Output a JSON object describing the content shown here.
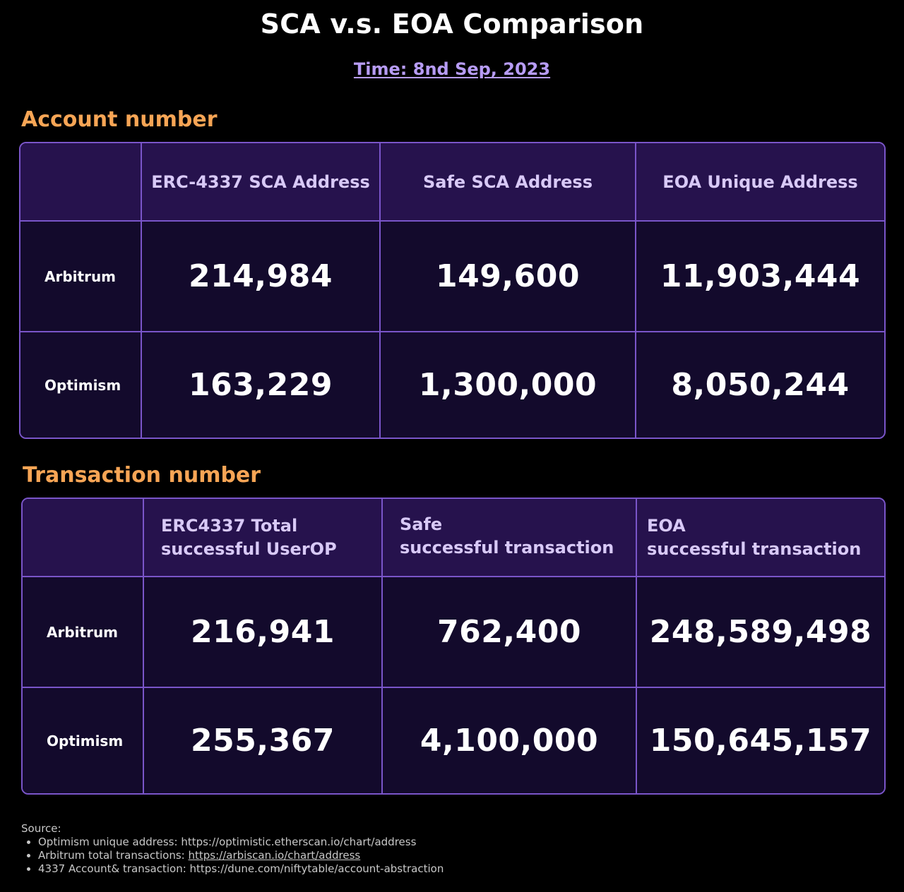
{
  "title": "SCA v.s. EOA Comparison",
  "subtitle": "Time: 8nd Sep, 2023",
  "account_section": {
    "heading": "Account number",
    "columns": [
      "ERC-4337 SCA Address",
      "Safe SCA Address",
      "EOA Unique Address"
    ],
    "rows": [
      {
        "label": "Arbitrum",
        "values": [
          "214,984",
          "149,600",
          "11,903,444"
        ]
      },
      {
        "label": "Optimism",
        "values": [
          "163,229",
          "1,300,000",
          "8,050,244"
        ]
      }
    ]
  },
  "transaction_section": {
    "heading": "Transaction number",
    "columns": [
      {
        "line1": "ERC4337 Total",
        "line2": "successful UserOP"
      },
      {
        "line1": "Safe",
        "line2": "successful transaction"
      },
      {
        "line1": "EOA",
        "line2": "successful transaction"
      }
    ],
    "rows": [
      {
        "label": "Arbitrum",
        "values": [
          "216,941",
          "762,400",
          "248,589,498"
        ]
      },
      {
        "label": "Optimism",
        "values": [
          "255,367",
          "4,100,000",
          "150,645,157"
        ]
      }
    ]
  },
  "source": {
    "label": "Source:",
    "items": [
      {
        "prefix": "Optimism unique address: ",
        "link": "https://optimistic.etherscan.io/chart/address"
      },
      {
        "prefix": "Arbitrum total transactions: ",
        "link": "https://arbiscan.io/chart/address"
      },
      {
        "prefix": "4337 Account& transaction: ",
        "link": "https://dune.com/niftytable/account-abstraction"
      }
    ]
  },
  "colors": {
    "background": "#000000",
    "accent_orange": "#f7a555",
    "accent_purple": "#b79cf5",
    "border": "#7a55c9",
    "header_bg": "#26124d",
    "cell_bg": "#130a2c"
  }
}
